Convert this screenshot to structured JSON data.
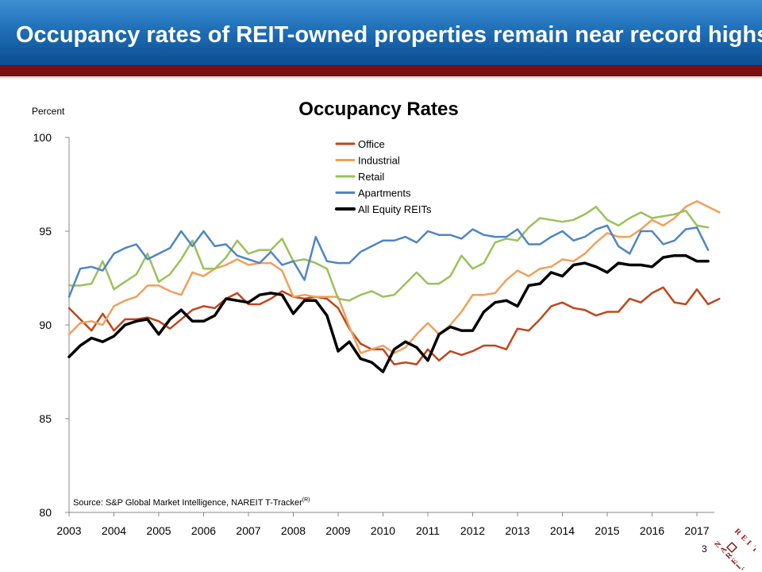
{
  "slide": {
    "title": "Occupancy rates of REIT-owned properties remain near record highs",
    "page_number": "3",
    "logo_text": "REIT NAREIT"
  },
  "colors": {
    "banner": "#1f6fb8",
    "stripe": "#7b0f0f",
    "office": "#c0461b",
    "industrial": "#f0a05a",
    "retail": "#98c25a",
    "apartments": "#4f85c4",
    "all_equity": "#000000",
    "logo": "#8a1a1a"
  },
  "chart_data": {
    "type": "line",
    "title": "Occupancy Rates",
    "ylabel": "Percent",
    "xlabel": "",
    "source": "Source: S&P Global Market Intelligence, NAREIT T-Tracker",
    "source_superscript": "(R)",
    "xlim": [
      2003,
      2017.3
    ],
    "ylim": [
      80,
      100
    ],
    "yticks": [
      "80",
      "85",
      "90",
      "95",
      "100"
    ],
    "xticks": [
      "2003",
      "2004",
      "2005",
      "2006",
      "2007",
      "2008",
      "2009",
      "2010",
      "2011",
      "2012",
      "2013",
      "2014",
      "2015",
      "2016",
      "2017"
    ],
    "grid": false,
    "legend_position": "top-center",
    "x_start_year": 2003,
    "points_per_year": 4,
    "series": [
      {
        "name": "Office",
        "values": [
          90.9,
          90.3,
          89.7,
          90.6,
          89.7,
          90.3,
          90.3,
          90.4,
          90.2,
          89.8,
          90.3,
          90.8,
          91.0,
          90.9,
          91.4,
          91.7,
          91.1,
          91.1,
          91.4,
          91.8,
          91.5,
          91.4,
          91.5,
          91.4,
          90.9,
          89.8,
          89.0,
          88.7,
          88.7,
          87.9,
          88.0,
          87.9,
          88.7,
          88.1,
          88.6,
          88.4,
          88.6,
          88.9,
          88.9,
          88.7,
          89.8,
          89.7,
          90.3,
          91.0,
          91.2,
          90.9,
          90.8,
          90.5,
          90.7,
          90.7,
          91.4,
          91.2,
          91.7,
          92.0,
          91.2,
          91.1,
          91.9,
          91.1,
          91.4
        ]
      },
      {
        "name": "Industrial",
        "values": [
          89.5,
          90.1,
          90.2,
          90.0,
          91.0,
          91.3,
          91.5,
          92.1,
          92.1,
          91.8,
          91.6,
          92.8,
          92.6,
          93.0,
          93.2,
          93.5,
          93.2,
          93.3,
          93.3,
          92.9,
          91.5,
          91.6,
          91.5,
          91.5,
          91.5,
          89.9,
          88.5,
          88.7,
          88.9,
          88.5,
          88.8,
          89.5,
          90.1,
          89.5,
          90.0,
          90.7,
          91.6,
          91.6,
          91.7,
          92.4,
          92.9,
          92.6,
          93.0,
          93.1,
          93.5,
          93.4,
          93.8,
          94.4,
          94.9,
          94.7,
          94.7,
          95.1,
          95.6,
          95.3,
          95.7,
          96.3,
          96.6,
          96.3,
          96.0
        ]
      },
      {
        "name": "Retail",
        "values": [
          92.1,
          92.1,
          92.2,
          93.4,
          91.9,
          92.3,
          92.7,
          93.8,
          92.3,
          92.7,
          93.5,
          94.5,
          93.0,
          93.0,
          93.6,
          94.5,
          93.8,
          94.0,
          94.0,
          94.6,
          93.4,
          93.5,
          93.3,
          93.0,
          91.4,
          91.3,
          91.6,
          91.8,
          91.5,
          91.6,
          92.2,
          92.8,
          92.2,
          92.2,
          92.6,
          93.7,
          93.0,
          93.3,
          94.4,
          94.6,
          94.5,
          95.2,
          95.7,
          95.6,
          95.5,
          95.6,
          95.9,
          96.3,
          95.6,
          95.3,
          95.7,
          96.0,
          95.7,
          95.8,
          95.9,
          96.1,
          95.3,
          95.2
        ]
      },
      {
        "name": "Apartments",
        "values": [
          91.5,
          93.0,
          93.1,
          92.9,
          93.8,
          94.1,
          94.3,
          93.5,
          93.8,
          94.1,
          95.0,
          94.2,
          95.0,
          94.2,
          94.3,
          93.7,
          93.5,
          93.3,
          93.9,
          93.2,
          93.4,
          92.4,
          94.7,
          93.4,
          93.3,
          93.3,
          93.9,
          94.2,
          94.5,
          94.5,
          94.7,
          94.4,
          95.0,
          94.8,
          94.8,
          94.6,
          95.1,
          94.8,
          94.7,
          94.7,
          95.1,
          94.3,
          94.3,
          94.7,
          95.0,
          94.5,
          94.7,
          95.1,
          95.3,
          94.2,
          93.8,
          95.0,
          95.0,
          94.3,
          94.5,
          95.1,
          95.2,
          94.0
        ]
      },
      {
        "name": "All Equity REITs",
        "values": [
          88.3,
          88.9,
          89.3,
          89.1,
          89.4,
          90.0,
          90.2,
          90.3,
          89.5,
          90.3,
          90.8,
          90.2,
          90.2,
          90.5,
          91.4,
          91.3,
          91.2,
          91.6,
          91.7,
          91.6,
          90.6,
          91.3,
          91.3,
          90.5,
          88.6,
          89.1,
          88.2,
          88.0,
          87.5,
          88.7,
          89.1,
          88.8,
          88.1,
          89.5,
          89.9,
          89.7,
          89.7,
          90.7,
          91.2,
          91.3,
          91.0,
          92.1,
          92.2,
          92.8,
          92.6,
          93.2,
          93.3,
          93.1,
          92.8,
          93.3,
          93.2,
          93.2,
          93.1,
          93.6,
          93.7,
          93.7,
          93.4,
          93.4
        ]
      }
    ]
  }
}
